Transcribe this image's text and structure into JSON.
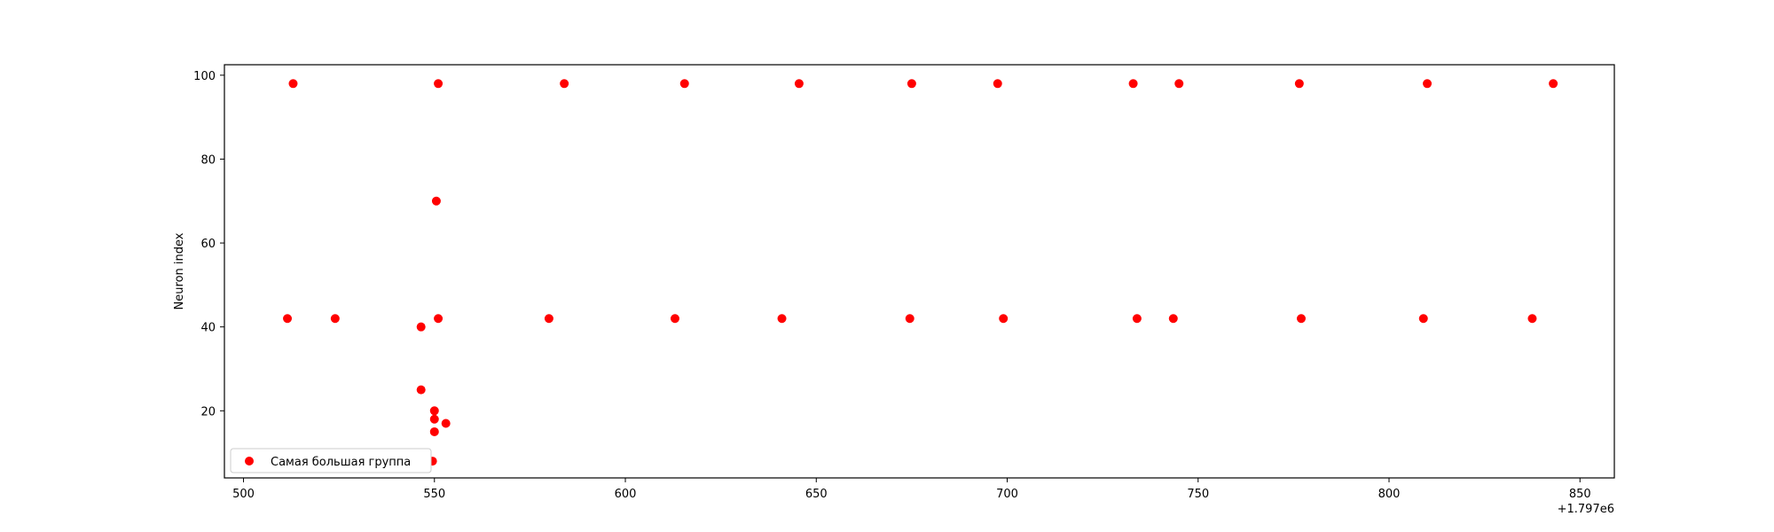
{
  "chart_data": {
    "type": "scatter",
    "title": "",
    "xlabel": "",
    "ylabel": "Neuron index",
    "x_offset_label": "+1.797e6",
    "xlim": [
      495,
      859
    ],
    "ylim": [
      4,
      102.5
    ],
    "xticks": [
      500,
      550,
      600,
      650,
      700,
      750,
      800,
      850
    ],
    "yticks": [
      20,
      40,
      60,
      80,
      100
    ],
    "grid": false,
    "legend": {
      "position": "lower-left"
    },
    "series": [
      {
        "name": "Самая большая группа",
        "color": "#ff0000",
        "points": [
          [
            513,
            98
          ],
          [
            551,
            98
          ],
          [
            584,
            98
          ],
          [
            615.5,
            98
          ],
          [
            645.5,
            98
          ],
          [
            675,
            98
          ],
          [
            697.5,
            98
          ],
          [
            733,
            98
          ],
          [
            745,
            98
          ],
          [
            776.5,
            98
          ],
          [
            810,
            98
          ],
          [
            843,
            98
          ],
          [
            550.5,
            70
          ],
          [
            511.5,
            42
          ],
          [
            524,
            42
          ],
          [
            551,
            42
          ],
          [
            580,
            42
          ],
          [
            613,
            42
          ],
          [
            641,
            42
          ],
          [
            674.5,
            42
          ],
          [
            699,
            42
          ],
          [
            734,
            42
          ],
          [
            743.5,
            42
          ],
          [
            777,
            42
          ],
          [
            809,
            42
          ],
          [
            837.5,
            42
          ],
          [
            546.5,
            40
          ],
          [
            546.5,
            25
          ],
          [
            550,
            20
          ],
          [
            550,
            18
          ],
          [
            553,
            17
          ],
          [
            550,
            15
          ],
          [
            549.5,
            8
          ]
        ]
      }
    ]
  }
}
